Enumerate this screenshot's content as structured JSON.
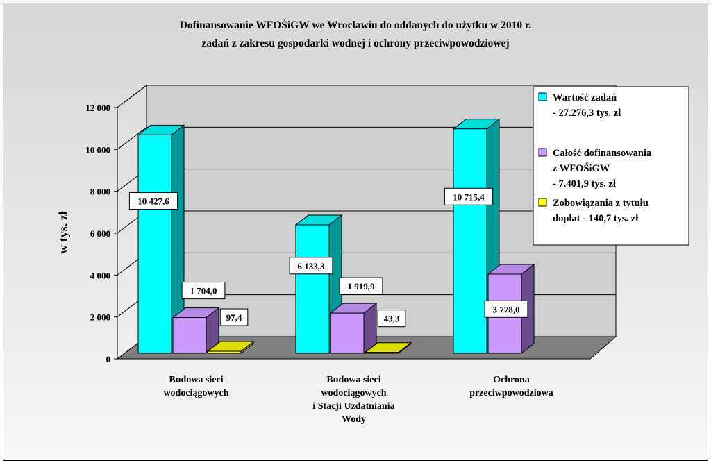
{
  "chart_data": {
    "type": "bar",
    "title": "Dofinansowanie WFOŚiGW we Wrocławiu do oddanych do użytku w 2010 r.",
    "subtitle": "zadań z zakresu gospodarki wodnej i ochrony przeciwpowodziowej",
    "ylabel": "w tys. zł",
    "ylim": [
      0,
      12000
    ],
    "yticks": [
      "0",
      "2 000",
      "4 000",
      "6 000",
      "8 000",
      "10 000",
      "12 000"
    ],
    "categories": [
      [
        "Budowa sieci",
        "wodociągowych"
      ],
      [
        "Budowa sieci",
        "wodociągowych",
        "i  Stacji Uzdatniania",
        "Wody"
      ],
      [
        "Ochrona",
        "przeciwpowodziowa"
      ]
    ],
    "series": [
      {
        "name": "Wartość zadań - 27.276,3 tys. zł",
        "legend_lines": [
          "Wartość zadań",
          " - 27.276,3 tys. zł"
        ],
        "color": "#00ffff",
        "side": "#009999",
        "top": "#00dddd",
        "values": [
          10427.6,
          6133.3,
          10715.4
        ],
        "labels": [
          "10 427,6",
          "6 133,3",
          "10 715,4"
        ]
      },
      {
        "name": "Całość dofinansowania z WFOŚiGW - 7.401,9 tys. zł",
        "legend_lines": [
          "Całość dofinansowania",
          "z WFOŚiGW",
          " - 7.401,9 tys. zł"
        ],
        "color": "#cc99ff",
        "side": "#6a4c8c",
        "top": "#b58ae6",
        "values": [
          1704.0,
          1919.9,
          3778.0
        ],
        "labels": [
          "1 704,0",
          "1 919,9",
          "3 778,0"
        ]
      },
      {
        "name": "Zobowiązania z tytułu dopłat - 140,7 tys. zł",
        "legend_lines": [
          "Zobowiązania z tytułu",
          "dopłat - 140,7 tys. zł"
        ],
        "color": "#ffff00",
        "side": "#999900",
        "top": "#dddd00",
        "values": [
          97.4,
          43.3,
          0
        ],
        "labels": [
          "97,4",
          "43,3",
          ""
        ]
      }
    ],
    "grid": true,
    "legend_position": "top-right"
  }
}
